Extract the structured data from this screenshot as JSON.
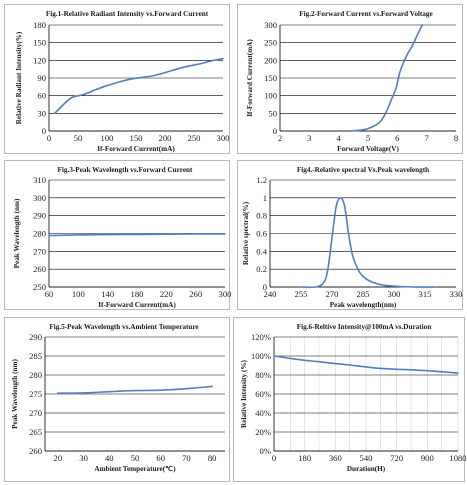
{
  "chart_data": [
    {
      "type": "line",
      "title": "Fig.1-Relative Radiant Intensity vs.Forward Current",
      "xlabel": "If-Forward Current(mA)",
      "ylabel": "Relative Radiant Intensity(%)",
      "xlim": [
        0,
        300
      ],
      "ylim": [
        0,
        180
      ],
      "xticks": [
        0,
        50,
        100,
        150,
        200,
        250,
        300
      ],
      "yticks": [
        0,
        30,
        60,
        90,
        120,
        150,
        180
      ],
      "grid": "horizontal",
      "series": [
        {
          "values": [
            [
              10,
              30
            ],
            [
              25,
              45
            ],
            [
              40,
              57
            ],
            [
              60,
              62
            ],
            [
              80,
              70
            ],
            [
              100,
              77
            ],
            [
              120,
              83
            ],
            [
              140,
              88
            ],
            [
              160,
              91
            ],
            [
              180,
              94
            ],
            [
              200,
              99
            ],
            [
              220,
              105
            ],
            [
              240,
              110
            ],
            [
              260,
              114
            ],
            [
              280,
              119
            ],
            [
              300,
              123
            ]
          ]
        }
      ]
    },
    {
      "type": "line",
      "title": "Fig.2-Forward Current vs.Forward Voltage",
      "xlabel": "Forward Voltage(V)",
      "ylabel": "If-Forward Current(mA)",
      "xlim": [
        2,
        8
      ],
      "ylim": [
        0,
        300
      ],
      "xticks": [
        2,
        3,
        4,
        5,
        6,
        7,
        8
      ],
      "yticks": [
        0,
        50,
        100,
        150,
        200,
        250,
        300
      ],
      "grid": "horizontal",
      "series": [
        {
          "values": [
            [
              4.4,
              0
            ],
            [
              4.8,
              3
            ],
            [
              5.1,
              10
            ],
            [
              5.4,
              25
            ],
            [
              5.6,
              50
            ],
            [
              5.8,
              90
            ],
            [
              5.95,
              120
            ],
            [
              6.1,
              170
            ],
            [
              6.3,
              210
            ],
            [
              6.5,
              240
            ],
            [
              6.7,
              275
            ],
            [
              6.85,
              300
            ]
          ]
        }
      ]
    },
    {
      "type": "line",
      "title": "Fig.3-Peak Wavelength vs.Forward Current",
      "xlabel": "If-Forward Current(mA)",
      "ylabel": "Peak Wavelength (nm)",
      "xlim": [
        60,
        300
      ],
      "ylim": [
        250,
        310
      ],
      "xticks": [
        60,
        100,
        140,
        180,
        220,
        260,
        300
      ],
      "yticks": [
        250,
        260,
        270,
        280,
        290,
        300,
        310
      ],
      "grid": "horizontal",
      "series": [
        {
          "values": [
            [
              60,
              278.8
            ],
            [
              100,
              279.2
            ],
            [
              140,
              279.4
            ],
            [
              180,
              279.5
            ],
            [
              220,
              279.6
            ],
            [
              260,
              279.7
            ],
            [
              300,
              279.8
            ]
          ]
        }
      ]
    },
    {
      "type": "line",
      "title": "Fig4.-Relative spectral Vs.Peak wavelength",
      "xlabel": "Peak wavelength(nm)",
      "ylabel": "Relative spectral(%)",
      "xlim": [
        240,
        330
      ],
      "ylim": [
        0,
        1.2
      ],
      "xticks": [
        240,
        255,
        270,
        285,
        300,
        315,
        330
      ],
      "yticks": [
        0,
        0.2,
        0.4,
        0.6,
        0.8,
        1,
        1.2
      ],
      "grid": "horizontal",
      "series": [
        {
          "values": [
            [
              255,
              0
            ],
            [
              262,
              0
            ],
            [
              266,
              0.05
            ],
            [
              268,
              0.2
            ],
            [
              270,
              0.55
            ],
            [
              272,
              0.9
            ],
            [
              274,
              1.0
            ],
            [
              276,
              0.92
            ],
            [
              278,
              0.6
            ],
            [
              280,
              0.35
            ],
            [
              283,
              0.18
            ],
            [
              286,
              0.1
            ],
            [
              290,
              0.05
            ],
            [
              295,
              0.02
            ],
            [
              300,
              0.01
            ],
            [
              310,
              0
            ],
            [
              320,
              0
            ]
          ]
        }
      ]
    },
    {
      "type": "line",
      "title": "Fig.5-Peak Wavelength vs.Ambient Temperature",
      "xlabel": "Ambient Temperature(℃)",
      "ylabel": "Peak Wavelength (nm)",
      "xlim": [
        15,
        85
      ],
      "ylim": [
        260,
        290
      ],
      "xticks": [
        20,
        30,
        40,
        50,
        60,
        70,
        80
      ],
      "yticks": [
        260,
        265,
        270,
        275,
        280,
        285,
        290
      ],
      "grid": "horizontal",
      "series": [
        {
          "values": [
            [
              20,
              275.2
            ],
            [
              30,
              275.3
            ],
            [
              40,
              275.6
            ],
            [
              50,
              275.9
            ],
            [
              60,
              276.0
            ],
            [
              70,
              276.4
            ],
            [
              80,
              277.0
            ]
          ]
        }
      ]
    },
    {
      "type": "line",
      "title": "Fig.6-Reltive Intensity@100mA vs.Duration",
      "xlabel": "Duration(H)",
      "ylabel": "Relative Intensity (%)",
      "xlim": [
        0,
        1080
      ],
      "ylim": [
        0,
        1.2
      ],
      "xticks": [
        0,
        96,
        180,
        264,
        360,
        444,
        540,
        624,
        720,
        804,
        900,
        984,
        1080
      ],
      "xtick_labels": [
        "0",
        "",
        "180",
        "",
        "360",
        "",
        "540",
        "",
        "720",
        "",
        "900",
        "",
        "1080"
      ],
      "yticks": [
        0,
        0.2,
        0.4,
        0.6,
        0.8,
        1.0,
        1.2
      ],
      "ytick_labels": [
        "0%",
        "20%",
        "40%",
        "60%",
        "80%",
        "100%",
        "120%"
      ],
      "grid": "both",
      "series": [
        {
          "values": [
            [
              0,
              1.0
            ],
            [
              96,
              0.975
            ],
            [
              180,
              0.955
            ],
            [
              264,
              0.94
            ],
            [
              360,
              0.92
            ],
            [
              444,
              0.905
            ],
            [
              540,
              0.885
            ],
            [
              624,
              0.87
            ],
            [
              720,
              0.86
            ],
            [
              804,
              0.855
            ],
            [
              900,
              0.845
            ],
            [
              984,
              0.835
            ],
            [
              1080,
              0.82
            ]
          ]
        }
      ]
    }
  ]
}
